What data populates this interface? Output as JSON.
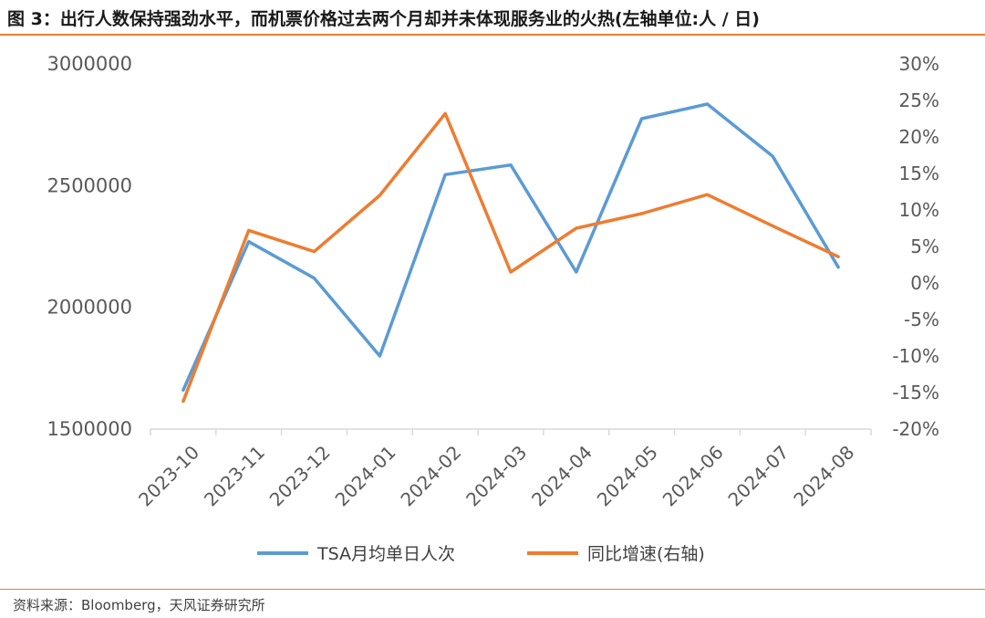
{
  "header": {
    "title": "图 3：出行人数保持强劲水平，而机票价格过去两个月却并未体现服务业的火热(左轴单位:人 / 日)"
  },
  "footer": {
    "source": "资料来源：Bloomberg，天风证券研究所"
  },
  "colors": {
    "tsa": "#5b9bd5",
    "yoy": "#ed7d31",
    "accent": "#ed7d31"
  },
  "chart_data": {
    "type": "line",
    "categories": [
      "2023-10",
      "2023-11",
      "2023-12",
      "2024-01",
      "2024-02",
      "2024-03",
      "2024-04",
      "2024-05",
      "2024-06",
      "2024-07",
      "2024-08"
    ],
    "series": [
      {
        "name": "TSA月均单日人次",
        "axis": "left",
        "values": [
          1660000,
          2270000,
          2120000,
          1800000,
          2545000,
          2585000,
          2145000,
          2775000,
          2835000,
          2620000,
          2165000
        ]
      },
      {
        "name": "同比增速(右轴)",
        "axis": "right",
        "values": [
          -16.2,
          7.2,
          4.3,
          12.0,
          23.2,
          1.5,
          7.5,
          9.5,
          12.1,
          7.8,
          3.6
        ]
      }
    ],
    "y_left": {
      "ylim": [
        1500000,
        3000000
      ],
      "ticks": [
        1500000,
        2000000,
        2500000,
        3000000
      ],
      "tick_labels": [
        "1500000",
        "2000000",
        "2500000",
        "3000000"
      ]
    },
    "y_right": {
      "ylim": [
        -20,
        30
      ],
      "ticks": [
        -20,
        -15,
        -10,
        -5,
        0,
        5,
        10,
        15,
        20,
        25,
        30
      ],
      "tick_labels": [
        "-20%",
        "-15%",
        "-10%",
        "-5%",
        "0%",
        "5%",
        "10%",
        "15%",
        "20%",
        "25%",
        "30%"
      ]
    },
    "grid": false,
    "legend": "bottom"
  }
}
